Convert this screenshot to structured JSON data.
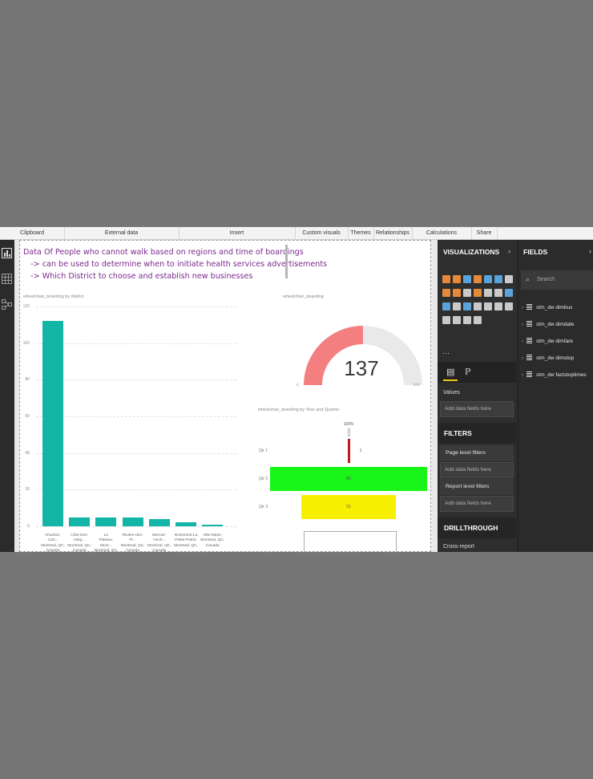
{
  "ribbon": {
    "groups": [
      "Clipboard",
      "External data",
      "Insert",
      "Custom visuals",
      "Themes",
      "Relationships",
      "Calculations",
      "Share"
    ]
  },
  "canvas": {
    "note_lines": [
      "Data Of People who cannot walk based on regions and time of boardings",
      "   -> can be used to determine when to initiate health services advertisements",
      "   -> Which District to choose and establish new businesses"
    ]
  },
  "bar_visual": {
    "title": "wheelchair_boarding by district",
    "y_ticks": [
      "120",
      "100",
      "80",
      "60",
      "40",
      "20",
      "0"
    ]
  },
  "gauge_visual": {
    "title": "wheelchair_boarding",
    "value": "137",
    "min_label": "0",
    "max_label": "274",
    "fill_fraction": 0.5,
    "fill_color": "#f47f80",
    "track_color": "#e9e9e9"
  },
  "funnel_visual": {
    "title": "wheelchair_boarding by Year and Quarter",
    "top_label": "100%",
    "stages": [
      {
        "label": "Qtr 1",
        "value": "1",
        "color": "#c11b1b",
        "fraction": 0.01
      },
      {
        "label": "Qtr 2",
        "value": "85",
        "color": "#19f419",
        "fraction": 1.0
      },
      {
        "label": "Qtr 3",
        "value": "51",
        "color": "#f7ef00",
        "fraction": 0.6
      }
    ]
  },
  "chart_data": {
    "type": "bar",
    "title": "wheelchair_boarding by district",
    "categories": [
      "Ahuntsic-Cart... Montreal, QC, Canada",
      "Côte-Des-Neig... Montreal, QC, Canada",
      "Le Plateau-Mont... Montreal, QC, Canada",
      "Rivière-des-Pr... Montreal, QC, Canada",
      "Mercier-Hoch... Montreal, QC, Canada",
      "Rosemont-La Petite-Patrie, Montreal, QC, Canada",
      "Ville-Marie, Montreal, QC, Canada"
    ],
    "category_lines": [
      [
        "Ahuntsic-Cart...",
        "Montreal, QC,",
        "Canada"
      ],
      [
        "Côte-Des-Neig...",
        "Montreal, QC,",
        "Canada"
      ],
      [
        "Le",
        "Plateau-Mont...",
        "Montreal, QC,"
      ],
      [
        "Rivière-des-Pr...",
        "Montreal, QC,",
        "Canada"
      ],
      [
        "Mercier-Hoch...",
        "Montreal, QC,",
        "Canada"
      ],
      [
        "Rosemont-La",
        "Petite-Patrie,",
        "Montreal, QC,"
      ],
      [
        "Ville-Marie,",
        "Montreal, QC,",
        "Canada"
      ]
    ],
    "values": [
      112,
      5,
      5,
      5,
      4,
      2,
      1
    ],
    "ylim": [
      0,
      120
    ],
    "grid": true,
    "bar_color": "#13b5a6"
  },
  "viz_pane": {
    "header": "VISUALIZATIONS",
    "values_label": "Values",
    "add_fields": "Add data fields here",
    "filters_header": "FILTERS",
    "page_filters": "Page level filters",
    "report_filters": "Report level filters",
    "drill_header": "DRILLTHROUGH",
    "cross_report": "Cross-report"
  },
  "fields_pane": {
    "header": "FIELDS",
    "search_placeholder": "Search",
    "tables": [
      "stm_dw dimbus",
      "stm_dw dimdate",
      "stm_dw dimfare",
      "stm_dw dimstop",
      "stm_dw factstoptimes"
    ]
  }
}
